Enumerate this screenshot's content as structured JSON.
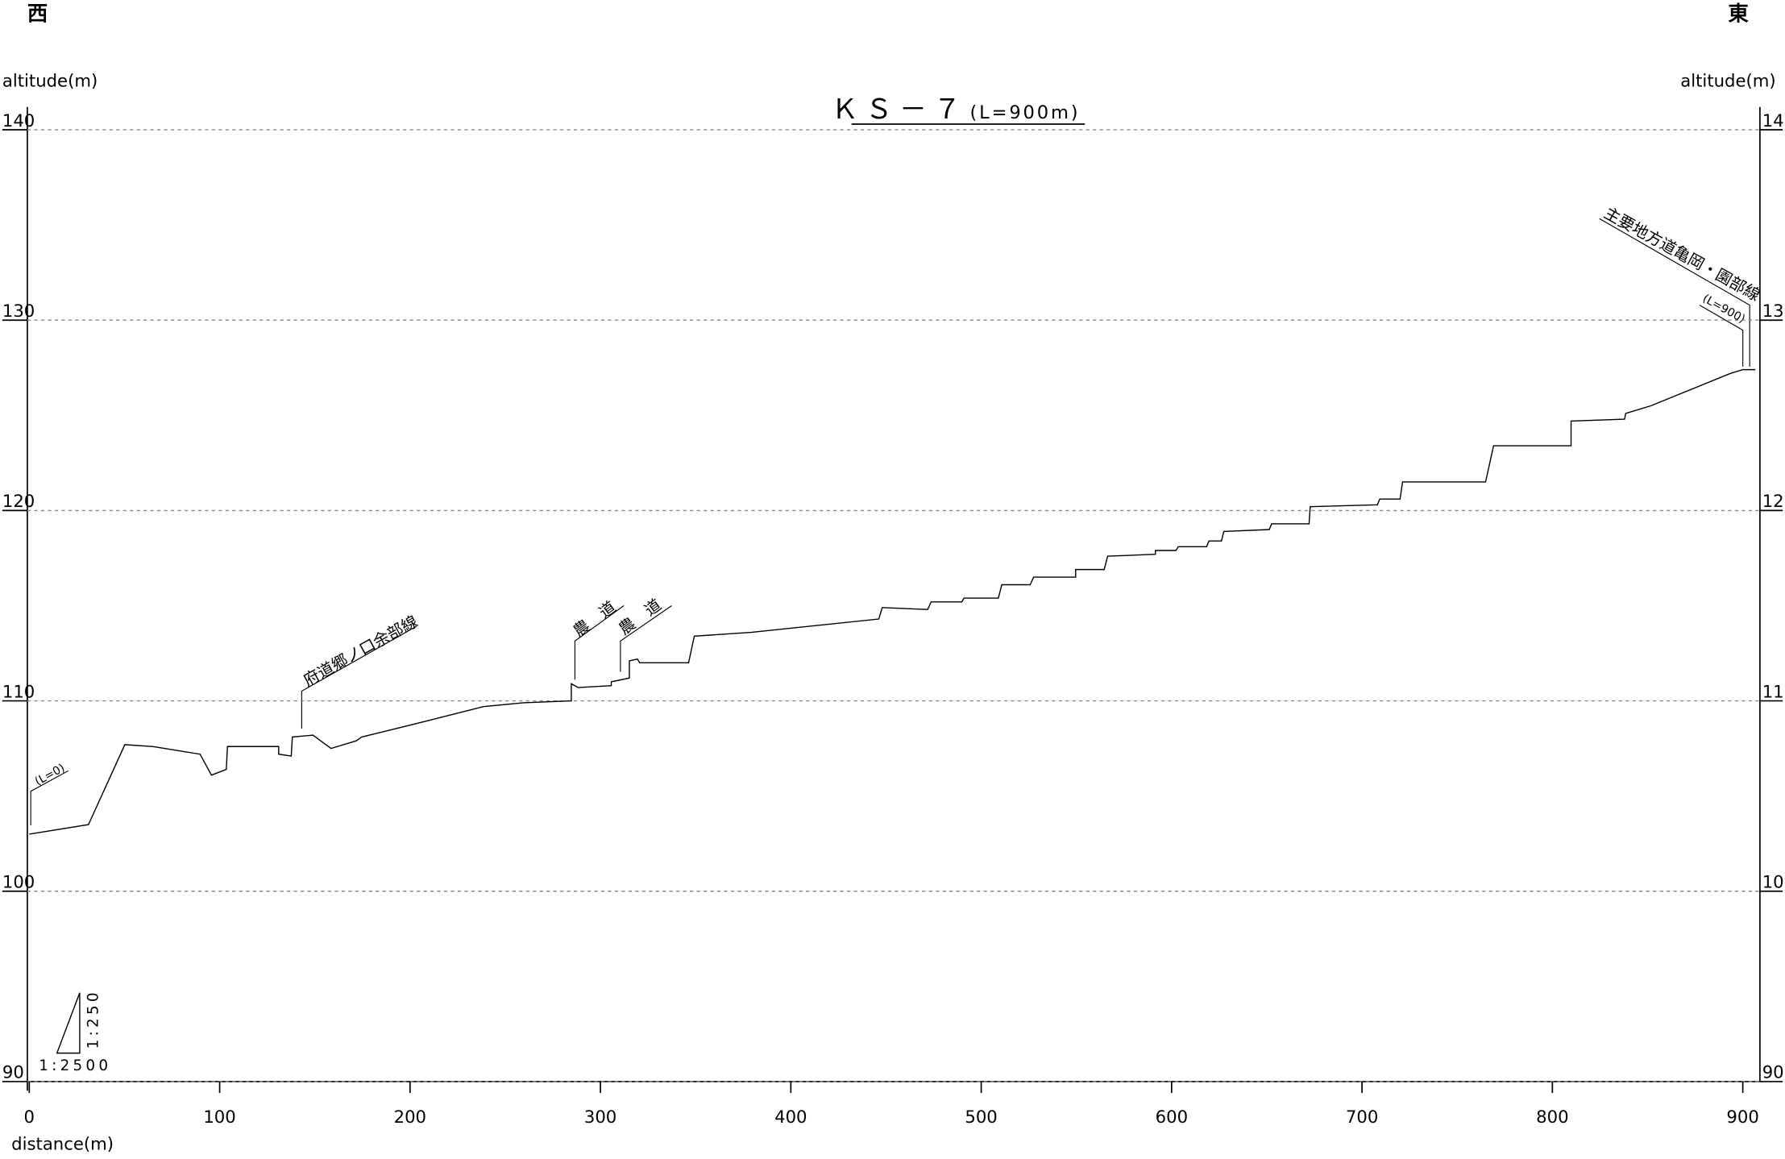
{
  "chart_data": {
    "type": "line",
    "title": "ＫＳ－７",
    "subtitle": "(L=900m)",
    "xlabel": "distance(m)",
    "ylabel": "altitude(m)",
    "y2label": "altitude(m)",
    "west": "西",
    "east": "東",
    "roads": [
      "府道郷ノ口余部線",
      "農　道",
      "農　道",
      "主要地方道亀岡・園部線"
    ],
    "start_label": "(L=0)",
    "end_label": "(L=900)",
    "scale_vertical": "1:250",
    "scale_horizontal": "1:2500",
    "xlim": [
      -1,
      909
    ],
    "ylim": [
      90,
      140
    ],
    "xticks": [
      0,
      100,
      200,
      300,
      400,
      500,
      600,
      700,
      800,
      900
    ],
    "yticks": [
      90,
      100,
      110,
      120,
      130,
      140
    ],
    "grid": true,
    "x": [
      0,
      31.1,
      50.2,
      65.1,
      89.7,
      95.7,
      103.5,
      104.1,
      131,
      131,
      137.6,
      138.2,
      149,
      158.5,
      171.7,
      174.6,
      190.8,
      207,
      238.6,
      259.6,
      284.7,
      284.7,
      288.3,
      305.7,
      305.7,
      315.2,
      315.2,
      319.4,
      320.6,
      346.3,
      349.3,
      379.2,
      446.2,
      448,
      471.9,
      473.7,
      489.8,
      491,
      509,
      510.8,
      525.7,
      527.5,
      549.6,
      549.6,
      564.6,
      566.4,
      591.5,
      591.5,
      602.3,
      603.5,
      618.4,
      619.6,
      626.2,
      627.4,
      651.3,
      652.5,
      672.2,
      672.8,
      708.1,
      709.3,
      720,
      721.3,
      764.9,
      769.1,
      809.8,
      809.8,
      837.9,
      838.5,
      851.7,
      893.5,
      900,
      906.6
    ],
    "series": [
      {
        "name": "KS-7",
        "color": "#000000",
        "values": [
          103.0,
          103.5,
          107.7,
          107.6,
          107.2,
          106.1,
          106.4,
          107.6,
          107.6,
          107.2,
          107.1,
          108.1,
          108.2,
          107.5,
          107.9,
          108.1,
          108.5,
          108.9,
          109.7,
          109.9,
          110.0,
          110.9,
          110.7,
          110.8,
          111.0,
          111.2,
          112.1,
          112.2,
          112.0,
          112.0,
          113.4,
          113.6,
          114.3,
          114.9,
          114.8,
          115.2,
          115.2,
          115.4,
          115.4,
          116.1,
          116.1,
          116.5,
          116.5,
          116.9,
          116.9,
          117.6,
          117.7,
          117.9,
          117.9,
          118.1,
          118.1,
          118.4,
          118.4,
          118.9,
          119.0,
          119.3,
          119.3,
          120.2,
          120.3,
          120.6,
          120.6,
          121.5,
          121.5,
          123.4,
          123.4,
          124.7,
          124.8,
          125.1,
          125.5,
          127.2,
          127.4,
          127.4
        ]
      }
    ]
  }
}
